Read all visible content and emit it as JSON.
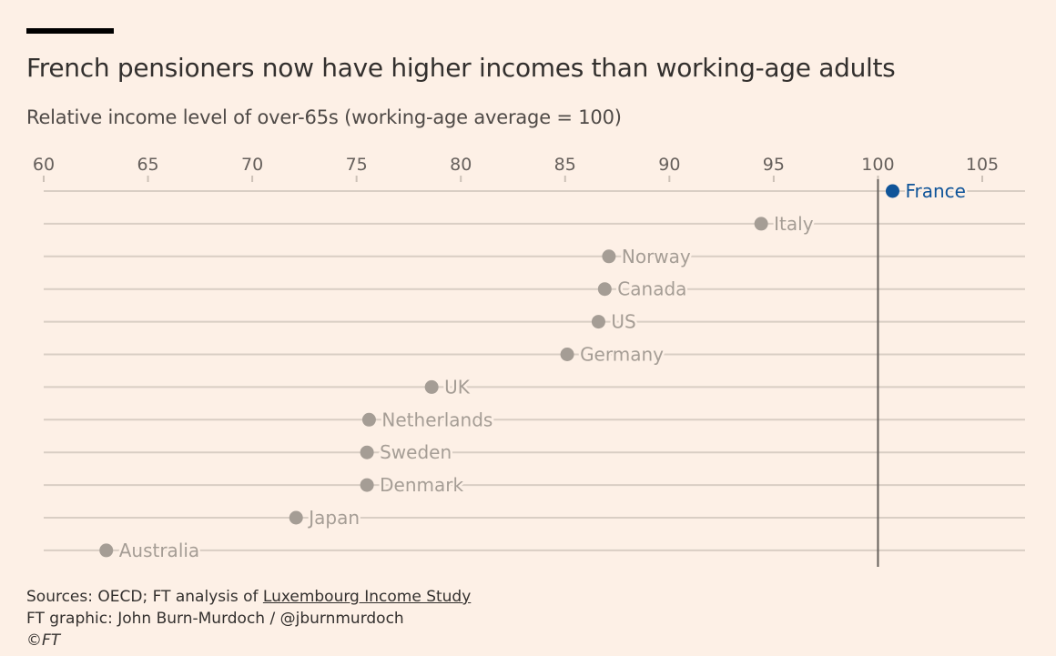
{
  "chart_data": {
    "type": "scatter",
    "title": "French pensioners now have higher incomes than working-age adults",
    "subtitle": "Relative income level of over-65s (working-age average = 100)",
    "xlim": [
      60,
      107
    ],
    "xticks": [
      60,
      65,
      70,
      75,
      80,
      85,
      90,
      95,
      100,
      105
    ],
    "reference_line": 100,
    "grid": true,
    "highlight_color": "#0f5499",
    "default_color": "#a59d95",
    "points": [
      {
        "label": "France",
        "value": 100.7,
        "highlight": true
      },
      {
        "label": "Italy",
        "value": 94.4
      },
      {
        "label": "Norway",
        "value": 87.1
      },
      {
        "label": "Canada",
        "value": 86.9
      },
      {
        "label": "US",
        "value": 86.6
      },
      {
        "label": "Germany",
        "value": 85.1
      },
      {
        "label": "UK",
        "value": 78.6
      },
      {
        "label": "Netherlands",
        "value": 75.6
      },
      {
        "label": "Sweden",
        "value": 75.5
      },
      {
        "label": "Denmark",
        "value": 75.5
      },
      {
        "label": "Japan",
        "value": 72.1
      },
      {
        "label": "Australia",
        "value": 63.0
      }
    ]
  },
  "footer": {
    "sources_prefix": "Sources: OECD; FT analysis of ",
    "sources_link": "Luxembourg Income Study",
    "credit": "FT graphic: John Burn-Murdoch / @jburnmurdoch",
    "copyright": "©FT"
  }
}
